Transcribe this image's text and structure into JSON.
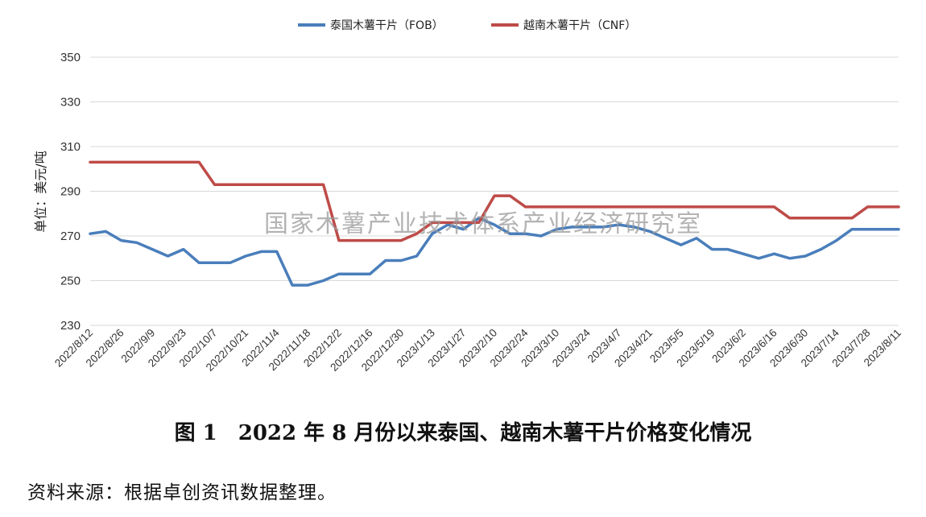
{
  "chart_data": {
    "type": "line",
    "ylabel": "单位：美元/吨",
    "ylim": [
      230,
      350
    ],
    "yticks": [
      230,
      250,
      270,
      290,
      310,
      330,
      350
    ],
    "grid": "horizontal",
    "legend": "top-center",
    "x_tick_labels": [
      "2022/8/12",
      "2022/8/26",
      "2022/9/9",
      "2022/9/23",
      "2022/10/7",
      "2022/10/21",
      "2022/11/4",
      "2022/11/18",
      "2022/12/2",
      "2022/12/16",
      "2022/12/30",
      "2023/1/13",
      "2023/1/27",
      "2023/2/10",
      "2023/2/24",
      "2023/3/10",
      "2023/3/24",
      "2023/4/7",
      "2023/4/21",
      "2023/5/5",
      "2023/5/19",
      "2023/6/2",
      "2023/6/16",
      "2023/6/30",
      "2023/7/14",
      "2023/7/28",
      "2023/8/11"
    ],
    "x": [
      "2022/8/12",
      "2022/8/19",
      "2022/8/26",
      "2022/9/2",
      "2022/9/9",
      "2022/9/16",
      "2022/9/23",
      "2022/9/30",
      "2022/10/7",
      "2022/10/14",
      "2022/10/21",
      "2022/10/28",
      "2022/11/4",
      "2022/11/11",
      "2022/11/18",
      "2022/11/25",
      "2022/12/2",
      "2022/12/9",
      "2022/12/16",
      "2022/12/23",
      "2022/12/30",
      "2023/1/6",
      "2023/1/13",
      "2023/1/20",
      "2023/1/27",
      "2023/2/3",
      "2023/2/10",
      "2023/2/17",
      "2023/2/24",
      "2023/3/3",
      "2023/3/10",
      "2023/3/17",
      "2023/3/24",
      "2023/3/31",
      "2023/4/7",
      "2023/4/14",
      "2023/4/21",
      "2023/4/28",
      "2023/5/5",
      "2023/5/12",
      "2023/5/19",
      "2023/5/26",
      "2023/6/2",
      "2023/6/9",
      "2023/6/16",
      "2023/6/23",
      "2023/6/30",
      "2023/7/7",
      "2023/7/14",
      "2023/7/21",
      "2023/7/28",
      "2023/8/4",
      "2023/8/11"
    ],
    "series": [
      {
        "name": "泰国木薯干片（FOB）",
        "color": "#4a7ebb",
        "values": [
          271,
          272,
          268,
          267,
          264,
          261,
          264,
          258,
          258,
          258,
          261,
          263,
          263,
          248,
          248,
          250,
          253,
          253,
          253,
          259,
          259,
          261,
          271,
          275,
          273,
          278,
          275,
          271,
          271,
          270,
          273,
          274,
          274,
          274,
          275,
          274,
          272,
          269,
          266,
          269,
          264,
          264,
          262,
          260,
          262,
          260,
          261,
          264,
          268,
          273,
          273,
          273,
          273
        ]
      },
      {
        "name": "越南木薯干片（CNF）",
        "color": "#be4b48",
        "values": [
          303,
          303,
          303,
          303,
          303,
          303,
          303,
          303,
          293,
          293,
          293,
          293,
          293,
          293,
          293,
          293,
          268,
          268,
          268,
          268,
          268,
          271,
          276,
          276,
          276,
          276,
          288,
          288,
          283,
          283,
          283,
          283,
          283,
          283,
          283,
          283,
          283,
          283,
          283,
          283,
          283,
          283,
          283,
          283,
          283,
          278,
          278,
          278,
          278,
          278,
          283,
          283,
          283
        ]
      }
    ]
  },
  "watermark": "国家木薯产业技术体系产业经济研究室",
  "caption": "图 1　2022 年 8 月份以来泰国、越南木薯干片价格变化情况",
  "source_note": "资料来源：根据卓创资讯数据整理。"
}
